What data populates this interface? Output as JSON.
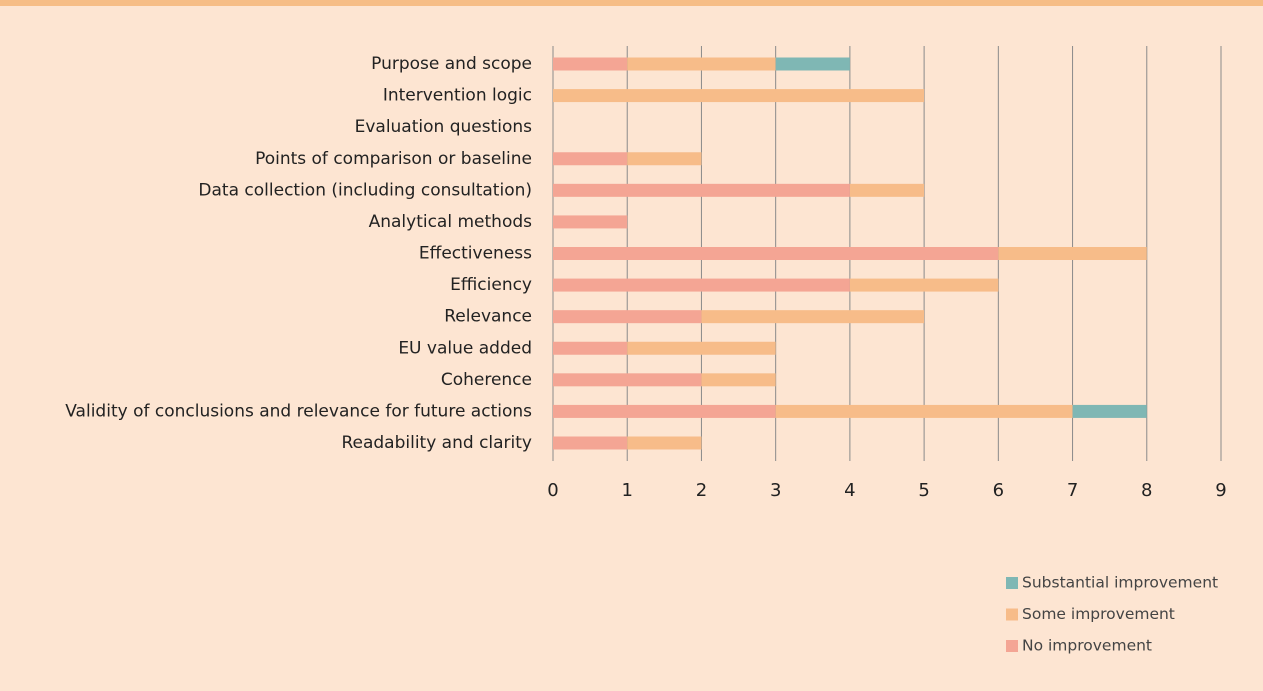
{
  "chart_data": {
    "type": "stacked_barh",
    "categories": [
      "Purpose and scope",
      "Intervention logic",
      "Evaluation questions",
      "Points of comparison or baseline",
      "Data collection (including consultation)",
      "Analytical methods",
      "Effectiveness",
      "Efficiency",
      "Relevance",
      "EU value added",
      "Coherence",
      "Validity of conclusions and relevance for future actions",
      "Readability and clarity"
    ],
    "series": [
      {
        "name": "No improvement",
        "color": "#f4a594",
        "values": [
          1,
          0,
          0,
          1,
          4,
          1,
          6,
          4,
          2,
          1,
          2,
          3,
          1
        ]
      },
      {
        "name": "Some improvement",
        "color": "#f7bc89",
        "values": [
          2,
          5,
          0,
          1,
          1,
          0,
          2,
          2,
          3,
          2,
          1,
          4,
          1
        ]
      },
      {
        "name": "Substantial improvement",
        "color": "#7fb7b4",
        "values": [
          1,
          0,
          0,
          0,
          0,
          0,
          0,
          0,
          0,
          0,
          0,
          1,
          0
        ]
      }
    ],
    "xlim": [
      0,
      9
    ],
    "xticks": [
      0,
      1,
      2,
      3,
      4,
      5,
      6,
      7,
      8,
      9
    ],
    "grid": true,
    "legend": "lower right"
  }
}
